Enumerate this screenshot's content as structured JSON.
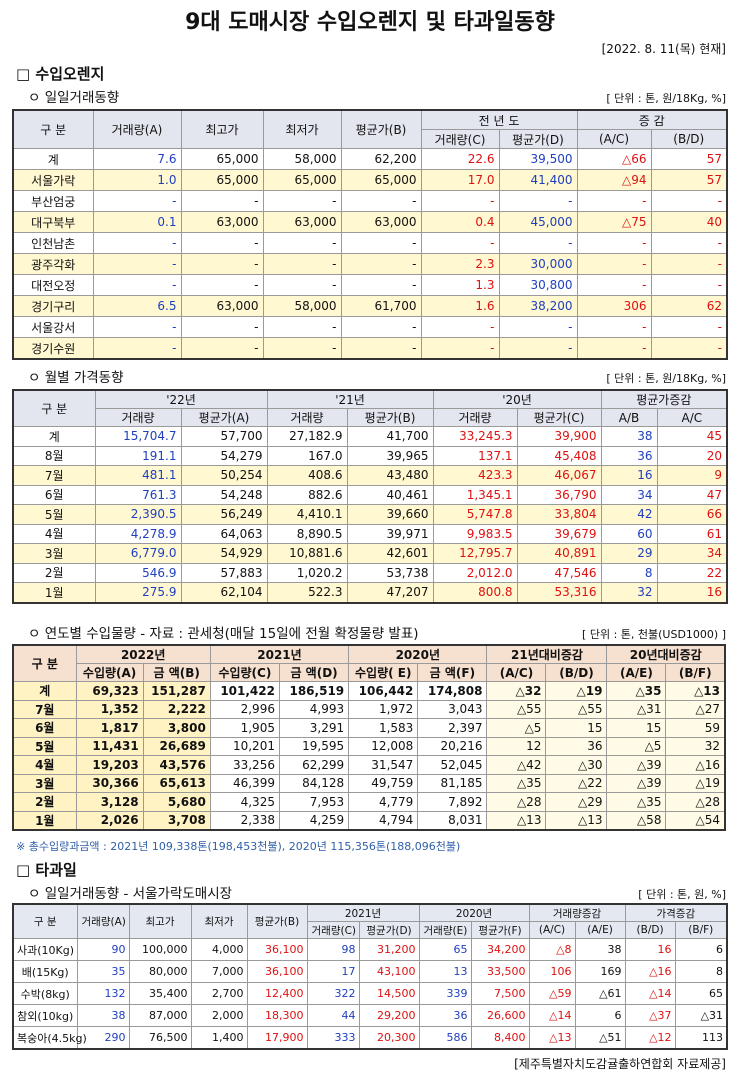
{
  "title": "9대 도매시장 수입오렌지 및 타과일동향",
  "date": "[2022. 8. 11(목) 현재]",
  "section1": "□ 수입오렌지",
  "sub1": "ㅇ 일일거래동향",
  "unit1": "[ 단위 : 톤, 원/18Kg, %]",
  "table1": {
    "header1": [
      "구 분",
      "거래량(A)",
      "최고가",
      "최저가",
      "평균가(B)",
      "전 년 도",
      "증 감"
    ],
    "header2": [
      "거래량(C)",
      "평균가(D)",
      "(A/C)",
      "(B/D)"
    ],
    "rows": [
      [
        "계",
        "7.6",
        "65,000",
        "58,000",
        "62,200",
        "22.6",
        "39,500",
        "△66",
        "57"
      ],
      [
        "서울가락",
        "1.0",
        "65,000",
        "65,000",
        "65,000",
        "17.0",
        "41,400",
        "△94",
        "57"
      ],
      [
        "부산엄궁",
        "-",
        "-",
        "-",
        "-",
        "-",
        "-",
        "-",
        "-"
      ],
      [
        "대구북부",
        "0.1",
        "63,000",
        "63,000",
        "63,000",
        "0.4",
        "45,000",
        "△75",
        "40"
      ],
      [
        "인천남촌",
        "-",
        "-",
        "-",
        "-",
        "-",
        "-",
        "-",
        "-"
      ],
      [
        "광주각화",
        "-",
        "-",
        "-",
        "-",
        "2.3",
        "30,000",
        "-",
        "-"
      ],
      [
        "대전오정",
        "-",
        "-",
        "-",
        "-",
        "1.3",
        "30,800",
        "-",
        "-"
      ],
      [
        "경기구리",
        "6.5",
        "63,000",
        "58,000",
        "61,700",
        "1.6",
        "38,200",
        "306",
        "62"
      ],
      [
        "서울강서",
        "-",
        "-",
        "-",
        "-",
        "-",
        "-",
        "-",
        "-"
      ],
      [
        "경기수원",
        "-",
        "-",
        "-",
        "-",
        "-",
        "-",
        "-",
        "-"
      ]
    ]
  },
  "sub2": "ㅇ 월별 가격동향",
  "unit2": "[ 단위 : 톤, 원/18Kg, %]",
  "table2": {
    "header1": [
      "구 분",
      "'22년",
      "'21년",
      "'20년",
      "평균가증감"
    ],
    "header2": [
      "거래량",
      "평균가(A)",
      "거래량",
      "평균가(B)",
      "거래량",
      "평균가(C)",
      "A/B",
      "A/C"
    ],
    "rows": [
      [
        "계",
        "15,704.7",
        "57,700",
        "27,182.9",
        "41,700",
        "33,245.3",
        "39,900",
        "38",
        "45"
      ],
      [
        "8월",
        "191.1",
        "54,279",
        "167.0",
        "39,965",
        "137.1",
        "45,408",
        "36",
        "20"
      ],
      [
        "7월",
        "481.1",
        "50,254",
        "408.6",
        "43,480",
        "423.3",
        "46,067",
        "16",
        "9"
      ],
      [
        "6월",
        "761.3",
        "54,248",
        "882.6",
        "40,461",
        "1,345.1",
        "36,790",
        "34",
        "47"
      ],
      [
        "5월",
        "2,390.5",
        "56,249",
        "4,410.1",
        "39,660",
        "5,747.8",
        "33,804",
        "42",
        "66"
      ],
      [
        "4월",
        "4,278.9",
        "64,063",
        "8,890.5",
        "39,971",
        "9,983.5",
        "39,679",
        "60",
        "61"
      ],
      [
        "3월",
        "6,779.0",
        "54,929",
        "10,881.6",
        "42,601",
        "12,795.7",
        "40,891",
        "29",
        "34"
      ],
      [
        "2월",
        "546.9",
        "57,883",
        "1,020.2",
        "53,738",
        "2,012.0",
        "47,546",
        "8",
        "22"
      ],
      [
        "1월",
        "275.9",
        "62,104",
        "522.3",
        "47,207",
        "800.8",
        "53,316",
        "32",
        "16"
      ]
    ]
  },
  "sub3": "ㅇ 연도별 수입물량 - 자료 : 관세청(매달 15일에 전월 확정물량 발표)",
  "unit3": "[ 단위 : 톤, 천불(USD1000) ]",
  "table3": {
    "header1": [
      "구 분",
      "2022년",
      "2021년",
      "2020년",
      "21년대비증감",
      "20년대비증감"
    ],
    "header2": [
      "수입량(A)",
      "금 액(B)",
      "수입량(C)",
      "금 액(D)",
      "수입량( E)",
      "금 액(F)",
      "(A/C)",
      "(B/D)",
      "(A/E)",
      "(B/F)"
    ],
    "rows": [
      [
        "계",
        "69,323",
        "151,287",
        "101,422",
        "186,519",
        "106,442",
        "174,808",
        "△32",
        "△19",
        "△35",
        "△13"
      ],
      [
        "7월",
        "1,352",
        "2,222",
        "2,996",
        "4,993",
        "1,972",
        "3,043",
        "△55",
        "△55",
        "△31",
        "△27"
      ],
      [
        "6월",
        "1,817",
        "3,800",
        "1,905",
        "3,291",
        "1,583",
        "2,397",
        "△5",
        "15",
        "15",
        "59"
      ],
      [
        "5월",
        "11,431",
        "26,689",
        "10,201",
        "19,595",
        "12,008",
        "20,216",
        "12",
        "36",
        "△5",
        "32"
      ],
      [
        "4월",
        "19,203",
        "43,576",
        "33,256",
        "62,299",
        "31,547",
        "52,045",
        "△42",
        "△30",
        "△39",
        "△16"
      ],
      [
        "3월",
        "30,366",
        "65,613",
        "46,399",
        "84,128",
        "49,759",
        "81,185",
        "△35",
        "△22",
        "△39",
        "△19"
      ],
      [
        "2월",
        "3,128",
        "5,680",
        "4,325",
        "7,953",
        "4,779",
        "7,892",
        "△28",
        "△29",
        "△35",
        "△28"
      ],
      [
        "1월",
        "2,026",
        "3,708",
        "2,338",
        "4,259",
        "4,794",
        "8,031",
        "△13",
        "△13",
        "△58",
        "△54"
      ]
    ]
  },
  "note3": "※ 총수입량과금액 : 2021년 109,338톤(198,453천불),  2020년 115,356톤(188,096천불)",
  "section2": "□ 타과일",
  "sub4": "ㅇ 일일거래동향 - 서울가락도매시장",
  "unit4": "[ 단위 : 톤, 원, %]",
  "table4": {
    "header1": [
      "구 분",
      "거래량(A)",
      "최고가",
      "최저가",
      "평균가(B)",
      "2021년",
      "2020년",
      "거래량증감",
      "가격증감"
    ],
    "header2": [
      "거래량(C)",
      "평균가(D)",
      "거래량(E)",
      "평균가(F)",
      "(A/C)",
      "(A/E)",
      "(B/D)",
      "(B/F)"
    ],
    "rows": [
      [
        "사과(10Kg)",
        "90",
        "100,000",
        "4,000",
        "36,100",
        "98",
        "31,200",
        "65",
        "34,200",
        "△8",
        "38",
        "16",
        "6"
      ],
      [
        "배(15Kg)",
        "35",
        "80,000",
        "7,000",
        "36,100",
        "17",
        "43,100",
        "13",
        "33,500",
        "106",
        "169",
        "△16",
        "8"
      ],
      [
        "수박(8kg)",
        "132",
        "35,400",
        "2,700",
        "12,400",
        "322",
        "14,500",
        "339",
        "7,500",
        "△59",
        "△61",
        "△14",
        "65"
      ],
      [
        "참외(10kg)",
        "38",
        "87,000",
        "2,000",
        "18,300",
        "44",
        "29,200",
        "36",
        "26,600",
        "△14",
        "6",
        "△37",
        "△31"
      ],
      [
        "복숭아(4.5kg)",
        "290",
        "76,500",
        "1,400",
        "17,900",
        "333",
        "20,300",
        "586",
        "8,400",
        "△13",
        "△51",
        "△12",
        "113"
      ]
    ]
  },
  "footer": "[제주특별자치도감귤출하연합회 자료제공]"
}
